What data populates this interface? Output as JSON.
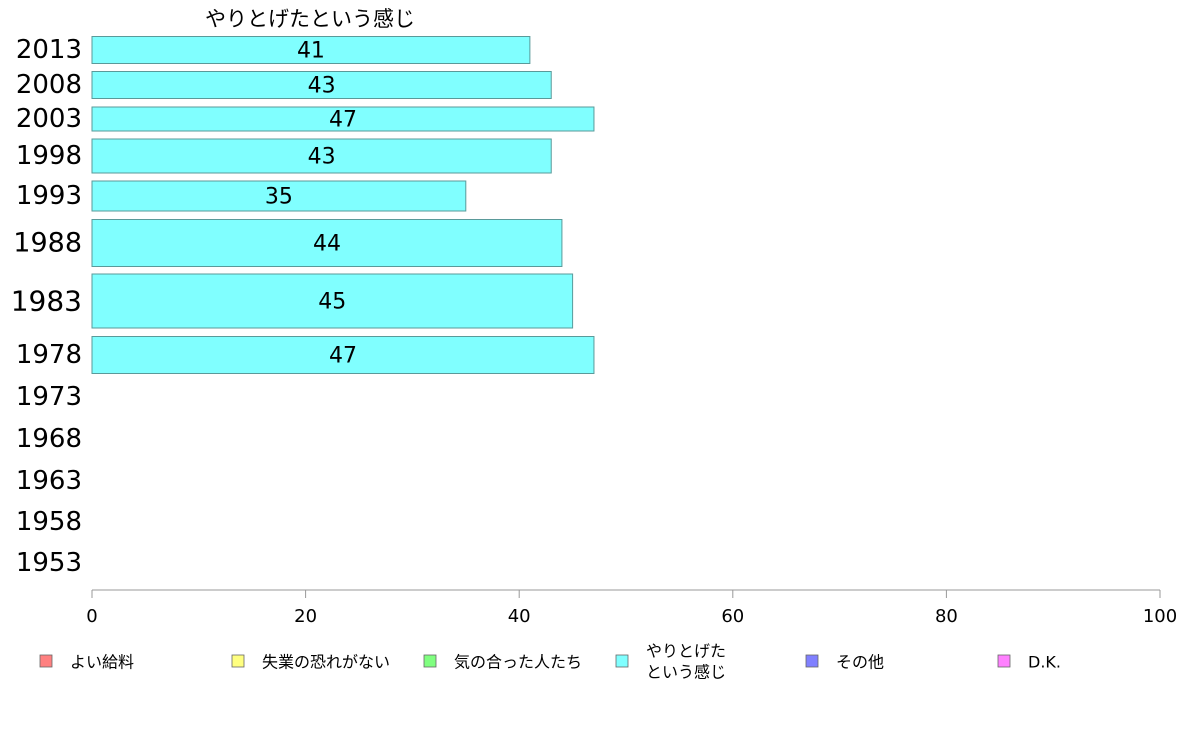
{
  "chart_data": {
    "type": "bar",
    "orientation": "horizontal",
    "series_label": "やりとげたという感じ",
    "categories": [
      "2013",
      "2008",
      "2003",
      "1998",
      "1993",
      "1988",
      "1983",
      "1978",
      "1973",
      "1968",
      "1963",
      "1958",
      "1953"
    ],
    "series": [
      {
        "name": "やりとげたという感じ",
        "color": "#80ffff",
        "values": [
          41,
          43,
          47,
          43,
          35,
          44,
          45,
          47,
          null,
          null,
          null,
          null,
          null
        ],
        "labels": [
          "41",
          "43",
          "47",
          "43",
          "35",
          "44",
          "45",
          "47",
          "",
          "",
          "",
          "",
          ""
        ]
      }
    ],
    "xlim": [
      0,
      100
    ],
    "xticks": [
      "0",
      "20",
      "40",
      "60",
      "80",
      "100"
    ],
    "grid": false,
    "legend": {
      "position": "bottom",
      "items": [
        {
          "label": "よい給料",
          "color": "#ff8080"
        },
        {
          "label": "失業の恐れがない",
          "color": "#ffff80"
        },
        {
          "label": "気の合った人たち",
          "color": "#80ff80"
        },
        {
          "label": "やりとげたという感じ",
          "lines": [
            "やりとげた",
            "という感じ"
          ],
          "color": "#80ffff"
        },
        {
          "label": "その他",
          "color": "#8080ff"
        },
        {
          "label": "D.K.",
          "color": "#ff80ff"
        }
      ]
    }
  }
}
